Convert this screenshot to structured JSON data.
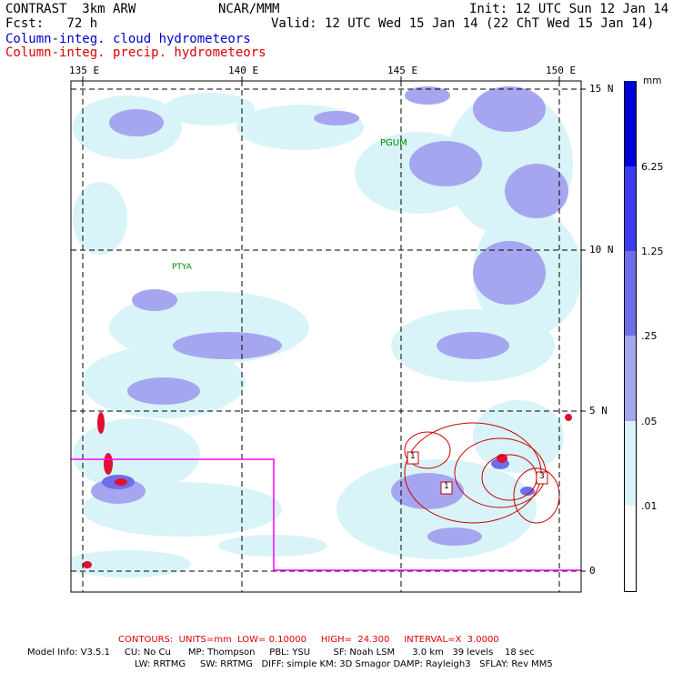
{
  "header": {
    "left_line1": "CONTRAST  3km ARW",
    "left_line2": "Fcst:   72 h",
    "center_line1": "NCAR/MMM",
    "right_line1": "Init: 12 UTC Sun 12 Jan 14",
    "right_line2": "Valid: 12 UTC Wed 15 Jan 14 (22 ChT Wed 15 Jan 14)",
    "legend_blue": "Column-integ. cloud hydrometeors",
    "legend_red": "Column-integ. precip. hydrometeors",
    "legend_blue_color": "#0000cc",
    "legend_red_color": "#dd0000"
  },
  "map": {
    "lon_labels": [
      "135 E",
      "140 E",
      "145 E",
      "150 E"
    ],
    "lat_labels": [
      "15 N",
      "10 N",
      "5 N",
      "0"
    ],
    "stations": [
      "PGUM",
      "PTYA"
    ],
    "contour_boxes": [
      "1",
      "1",
      "3"
    ],
    "grid_style": "dashed",
    "boundary_color": "#ff00ff",
    "contour_color": "#cc0000"
  },
  "colorbar": {
    "unit": "mm",
    "ticks": [
      "6.25",
      "1.25",
      ".25",
      ".05",
      ".01"
    ],
    "colors": [
      "#0000d8",
      "#3b3bf0",
      "#6e6ee8",
      "#a6a6f0",
      "#d8f4f8",
      "#ffffff"
    ]
  },
  "footer": {
    "contours": "CONTOURS:  UNITS=mm  LOW= 0.10000     HIGH=  24.300     INTERVAL=X  3.0000",
    "model_line1": "Model Info: V3.5.1     CU: No Cu      MP: Thompson     PBL: YSU        SF: Noah LSM      3.0 km   39 levels    18 sec",
    "model_line2": "LW: RRTMG     SW: RRTMG   DIFF: simple KM: 3D Smagor DAMP: Rayleigh3   SFLAY: Rev MM5"
  }
}
